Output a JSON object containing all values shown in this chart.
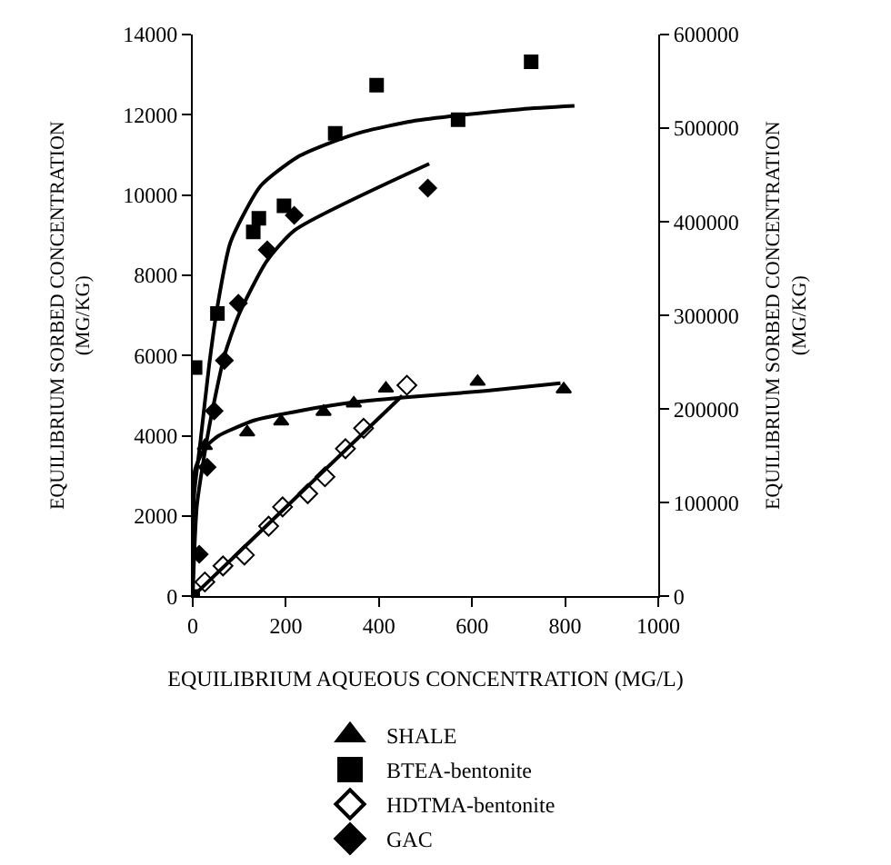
{
  "chart_data": {
    "type": "scatter",
    "xlabel": "EQUILIBRIUM AQUEOUS CONCENTRATION (MG/L)",
    "ylabel": "EQUILIBRIUM SORBED CONCENTRATION\n(MG/KG)",
    "y2label": "EQUILIBRIUM SORBED CONCENTRATION\n(MG/KG)",
    "xlim": [
      0,
      1000
    ],
    "xticks": [
      0,
      200,
      400,
      600,
      800,
      1000
    ],
    "ylim": [
      0,
      14000
    ],
    "yticks": [
      0,
      2000,
      4000,
      6000,
      8000,
      10000,
      12000,
      14000
    ],
    "y2lim": [
      0,
      600000
    ],
    "y2ticks": [
      0,
      100000,
      200000,
      300000,
      400000,
      500000,
      600000
    ],
    "legend": "bottom",
    "series": [
      {
        "name": "SHALE",
        "color": "#000000",
        "marker": "triangle",
        "x": [
          26,
          117,
          190,
          281,
          346,
          415,
          612,
          797
        ],
        "values": [
          3750,
          4090,
          4360,
          4600,
          4810,
          5180,
          5350,
          5160
        ]
      },
      {
        "name": "BTEA-bentonite",
        "color": "#000000",
        "marker": "square",
        "x": [
          0,
          5,
          53,
          130,
          142,
          196,
          306,
          395,
          570,
          727
        ],
        "values": [
          0,
          5700,
          7050,
          9080,
          9420,
          9730,
          11540,
          12740,
          11880,
          13320
        ]
      },
      {
        "name": "HDTMA-bentonite",
        "color": "#000000",
        "marker": "diamond-open",
        "x": [
          26,
          65,
          111,
          163,
          193,
          247,
          284,
          328,
          367,
          460
        ],
        "values": [
          360,
          760,
          1030,
          1750,
          2230,
          2560,
          2980,
          3680,
          4190,
          5260
        ]
      },
      {
        "name": "GAC",
        "color": "#000000",
        "marker": "diamond",
        "axis": "y2",
        "x": [
          14,
          31,
          46,
          68,
          98,
          160,
          218,
          505
        ],
        "values": [
          45000,
          138000,
          198000,
          252000,
          313000,
          370000,
          407000,
          436000
        ]
      },
      {
        "type": "line",
        "color": "#000000",
        "x": [
          0,
          5,
          29,
          55,
          133,
          237,
          341,
          458,
          628,
          790
        ],
        "values": [
          0,
          3160,
          3740,
          4000,
          4390,
          4640,
          4830,
          4960,
          5120,
          5310
        ]
      },
      {
        "type": "line",
        "color": "#000000",
        "x": [
          0,
          3,
          16,
          35,
          52,
          81,
          146,
          224,
          302,
          367,
          471,
          575,
          706,
          820
        ],
        "values": [
          0,
          2520,
          3810,
          5740,
          7150,
          8820,
          10230,
          10940,
          11330,
          11580,
          11840,
          11990,
          12140,
          12220
        ]
      },
      {
        "type": "line",
        "color": "#000000",
        "x": [
          0,
          450
        ],
        "values": [
          0,
          5000
        ]
      },
      {
        "type": "line",
        "color": "#000000",
        "axis": "y2",
        "x": [
          0,
          9,
          35,
          68,
          100,
          159,
          219,
          508
        ],
        "values": [
          0,
          97000,
          180000,
          257000,
          302000,
          358000,
          391000,
          462000
        ]
      }
    ]
  }
}
